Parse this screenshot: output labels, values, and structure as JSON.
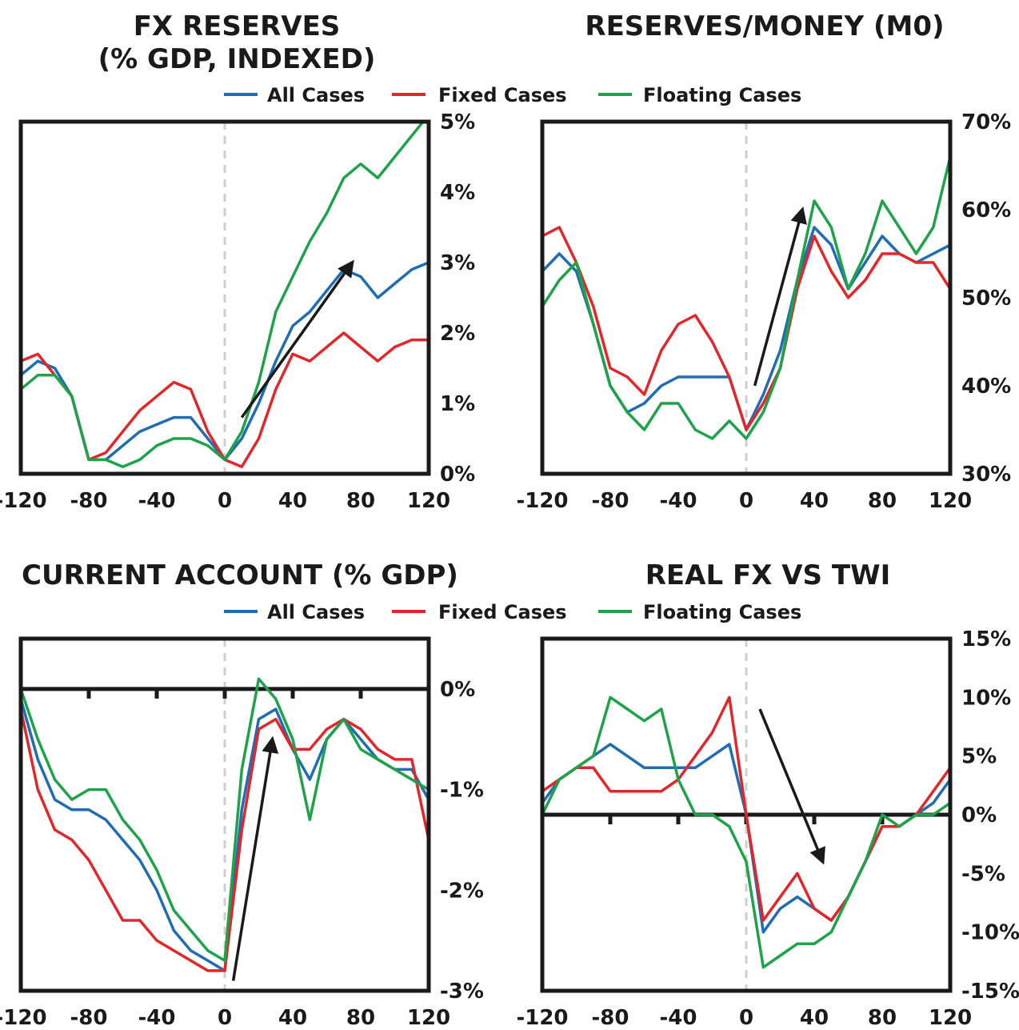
{
  "colors": {
    "all": "#1f6db5",
    "fixed": "#e3262a",
    "floating": "#1ea34a",
    "frame": "#1a1a1a",
    "zero_guide": "#cfcfcf",
    "arrow": "#1a1a1a"
  },
  "legend": {
    "all": "All Cases",
    "fixed": "Fixed Cases",
    "floating": "Floating Cases"
  },
  "chart_data": [
    {
      "type": "line",
      "title_lines": [
        "FX RESERVES",
        "(% GDP, INDEXED)"
      ],
      "y_axis": "right",
      "xlim": [
        -120,
        120
      ],
      "ylim": [
        0,
        5
      ],
      "x_ticks": [
        -120,
        -80,
        -40,
        0,
        40,
        80,
        120
      ],
      "x_tick_labels": [
        "-120",
        "-80",
        "-40",
        "0",
        "40",
        "80",
        "120"
      ],
      "y_ticks": [
        0,
        1,
        2,
        3,
        4,
        5
      ],
      "y_tick_labels": [
        "0%",
        "1%",
        "2%",
        "3%",
        "4%",
        "5%"
      ],
      "x": [
        -120,
        -110,
        -100,
        -90,
        -80,
        -70,
        -60,
        -50,
        -40,
        -30,
        -20,
        -10,
        0,
        10,
        20,
        30,
        40,
        50,
        60,
        70,
        80,
        90,
        100,
        110,
        120
      ],
      "series": [
        {
          "name": "All Cases",
          "key": "all",
          "values": [
            1.4,
            1.6,
            1.5,
            1.1,
            0.2,
            0.2,
            0.4,
            0.6,
            0.7,
            0.8,
            0.8,
            0.5,
            0.2,
            0.5,
            1.0,
            1.6,
            2.1,
            2.3,
            2.6,
            2.9,
            2.8,
            2.5,
            2.7,
            2.9,
            3.0
          ]
        },
        {
          "name": "Fixed Cases",
          "key": "fixed",
          "values": [
            1.6,
            1.7,
            1.4,
            1.1,
            0.2,
            0.3,
            0.6,
            0.9,
            1.1,
            1.3,
            1.2,
            0.6,
            0.2,
            0.1,
            0.5,
            1.2,
            1.7,
            1.6,
            1.8,
            2.0,
            1.8,
            1.6,
            1.8,
            1.9,
            1.9
          ]
        },
        {
          "name": "Floating Cases",
          "key": "floating",
          "values": [
            1.2,
            1.4,
            1.4,
            1.1,
            0.2,
            0.2,
            0.1,
            0.2,
            0.4,
            0.5,
            0.5,
            0.4,
            0.2,
            0.6,
            1.3,
            2.3,
            2.8,
            3.3,
            3.7,
            4.2,
            4.4,
            4.2,
            4.5,
            4.8,
            5.1
          ]
        }
      ],
      "arrow": {
        "from": [
          10,
          0.8
        ],
        "to": [
          75,
          3.0
        ]
      }
    },
    {
      "type": "line",
      "title_lines": [
        "RESERVES/MONEY (M0)"
      ],
      "y_axis": "right",
      "xlim": [
        -120,
        120
      ],
      "ylim": [
        30,
        70
      ],
      "x_ticks": [
        -120,
        -80,
        -40,
        0,
        40,
        80,
        120
      ],
      "x_tick_labels": [
        "-120",
        "-80",
        "-40",
        "0",
        "40",
        "80",
        "120"
      ],
      "y_ticks": [
        30,
        40,
        50,
        60,
        70
      ],
      "y_tick_labels": [
        "30%",
        "40%",
        "50%",
        "60%",
        "70%"
      ],
      "x": [
        -120,
        -110,
        -100,
        -90,
        -80,
        -70,
        -60,
        -50,
        -40,
        -30,
        -20,
        -10,
        0,
        10,
        20,
        30,
        40,
        50,
        60,
        70,
        80,
        90,
        100,
        110,
        120
      ],
      "series": [
        {
          "name": "All Cases",
          "key": "all",
          "values": [
            53,
            55,
            53,
            47,
            40,
            37,
            38,
            40,
            41,
            41,
            41,
            41,
            35,
            39,
            44,
            52,
            58,
            56,
            51,
            54,
            57,
            55,
            54,
            55,
            56
          ]
        },
        {
          "name": "Fixed Cases",
          "key": "fixed",
          "values": [
            57,
            58,
            54,
            49,
            42,
            41,
            39,
            44,
            47,
            48,
            45,
            41,
            35,
            38,
            42,
            51,
            57,
            53,
            50,
            52,
            55,
            55,
            54,
            54,
            51
          ]
        },
        {
          "name": "Floating Cases",
          "key": "floating",
          "values": [
            49,
            52,
            54,
            47,
            40,
            37,
            35,
            38,
            38,
            35,
            34,
            36,
            34,
            37,
            42,
            52,
            61,
            58,
            51,
            55,
            61,
            58,
            55,
            58,
            66
          ]
        }
      ],
      "arrow": {
        "from": [
          5,
          40
        ],
        "to": [
          33,
          60
        ]
      }
    },
    {
      "type": "line",
      "title_lines": [
        "CURRENT ACCOUNT (% GDP)"
      ],
      "y_axis": "right",
      "xlim": [
        -120,
        120
      ],
      "ylim": [
        -3,
        0.5
      ],
      "x_ticks": [
        -120,
        -80,
        -40,
        0,
        40,
        80,
        120
      ],
      "x_tick_labels": [
        "-120",
        "-80",
        "-40",
        "0",
        "40",
        "80",
        "120"
      ],
      "y_ticks": [
        -3,
        -2,
        -1,
        0
      ],
      "y_tick_labels": [
        "-3%",
        "-2%",
        "-1%",
        "0%"
      ],
      "x": [
        -120,
        -110,
        -100,
        -90,
        -80,
        -70,
        -60,
        -50,
        -40,
        -30,
        -20,
        -10,
        0,
        10,
        20,
        30,
        40,
        50,
        60,
        70,
        80,
        90,
        100,
        110,
        120
      ],
      "series": [
        {
          "name": "All Cases",
          "key": "all",
          "values": [
            -0.1,
            -0.7,
            -1.1,
            -1.2,
            -1.2,
            -1.3,
            -1.5,
            -1.7,
            -2.0,
            -2.4,
            -2.6,
            -2.7,
            -2.8,
            -1.2,
            -0.3,
            -0.2,
            -0.6,
            -0.9,
            -0.5,
            -0.3,
            -0.5,
            -0.7,
            -0.8,
            -0.8,
            -1.1
          ]
        },
        {
          "name": "Fixed Cases",
          "key": "fixed",
          "values": [
            -0.2,
            -1.0,
            -1.4,
            -1.5,
            -1.7,
            -2.0,
            -2.3,
            -2.3,
            -2.5,
            -2.6,
            -2.7,
            -2.8,
            -2.8,
            -1.4,
            -0.4,
            -0.3,
            -0.6,
            -0.6,
            -0.4,
            -0.3,
            -0.4,
            -0.6,
            -0.7,
            -0.7,
            -1.5
          ]
        },
        {
          "name": "Floating Cases",
          "key": "floating",
          "values": [
            0.0,
            -0.5,
            -0.9,
            -1.1,
            -1.0,
            -1.0,
            -1.3,
            -1.5,
            -1.8,
            -2.2,
            -2.4,
            -2.6,
            -2.7,
            -0.8,
            0.1,
            -0.1,
            -0.5,
            -1.3,
            -0.5,
            -0.3,
            -0.6,
            -0.7,
            -0.8,
            -0.9,
            -1.0
          ]
        }
      ],
      "arrow": {
        "from": [
          5,
          -2.9
        ],
        "to": [
          28,
          -0.5
        ]
      }
    },
    {
      "type": "line",
      "title_lines": [
        "REAL FX VS TWI"
      ],
      "y_axis": "right",
      "xlim": [
        -120,
        120
      ],
      "ylim": [
        -15,
        15
      ],
      "x_ticks": [
        -120,
        -80,
        -40,
        0,
        40,
        80,
        120
      ],
      "x_tick_labels": [
        "-120",
        "-80",
        "-40",
        "0",
        "40",
        "80",
        "120"
      ],
      "y_ticks": [
        -15,
        -10,
        -5,
        0,
        5,
        10,
        15
      ],
      "y_tick_labels": [
        "-15%",
        "-10%",
        "-5%",
        "0%",
        "5%",
        "10%",
        "15%"
      ],
      "x": [
        -120,
        -110,
        -100,
        -90,
        -80,
        -70,
        -60,
        -50,
        -40,
        -30,
        -20,
        -10,
        0,
        10,
        20,
        30,
        40,
        50,
        60,
        70,
        80,
        90,
        100,
        110,
        120
      ],
      "series": [
        {
          "name": "All Cases",
          "key": "all",
          "values": [
            1,
            3,
            4,
            5,
            6,
            5,
            4,
            4,
            4,
            4,
            5,
            6,
            0,
            -10,
            -8,
            -7,
            -8,
            -9,
            -7,
            -4,
            -1,
            -1,
            0,
            1,
            3
          ]
        },
        {
          "name": "Fixed Cases",
          "key": "fixed",
          "values": [
            2,
            3,
            4,
            4,
            2,
            2,
            2,
            2,
            3,
            5,
            7,
            10,
            0,
            -9,
            -7,
            -5,
            -8,
            -9,
            -7,
            -4,
            -1,
            -1,
            0,
            2,
            4
          ]
        },
        {
          "name": "Floating Cases",
          "key": "floating",
          "values": [
            0,
            3,
            4,
            5,
            10,
            9,
            8,
            9,
            3,
            0,
            0,
            -1,
            -4,
            -13,
            -12,
            -11,
            -11,
            -10,
            -7,
            -4,
            0,
            -1,
            0,
            0,
            1
          ]
        }
      ],
      "arrow": {
        "from": [
          8,
          9
        ],
        "to": [
          45,
          -4
        ]
      }
    }
  ]
}
